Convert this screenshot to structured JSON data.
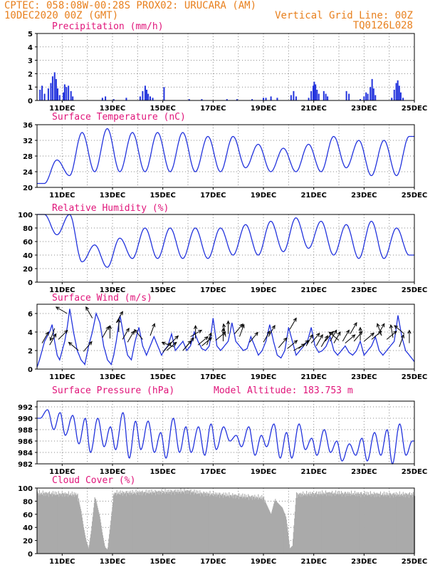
{
  "header": {
    "line1_left": "CPTEC:   058:08W-00:28S   PROX02: URUCARA (AM)",
    "line2_left": "10DEC2020 00Z (GMT)",
    "line2_right": "Vertical Grid Line: 00Z",
    "line3_right": "TQ0126L028"
  },
  "colors": {
    "line": "#2233dd",
    "bar": "#2233dd",
    "cloud": "#aaaaaa",
    "header": "#e8801e",
    "title": "#e0157a"
  },
  "date_labels": [
    "11DEC",
    "13DEC",
    "15DEC",
    "17DEC",
    "19DEC",
    "21DEC",
    "23DEC",
    "25DEC"
  ],
  "chart_data": [
    {
      "type": "bar",
      "title": "Precipitation (mm/h)",
      "ylim": [
        0,
        5
      ],
      "yticks": [
        0,
        1,
        2,
        3,
        4,
        5
      ],
      "x_range_days": [
        10.0,
        25.0
      ],
      "events": [
        [
          10.12,
          0.8
        ],
        [
          10.2,
          1.1
        ],
        [
          10.3,
          0.5
        ],
        [
          10.45,
          0.9
        ],
        [
          10.55,
          1.3
        ],
        [
          10.62,
          1.8
        ],
        [
          10.7,
          2.1
        ],
        [
          10.76,
          1.6
        ],
        [
          10.82,
          0.9
        ],
        [
          10.9,
          0.4
        ],
        [
          11.05,
          0.6
        ],
        [
          11.1,
          1.2
        ],
        [
          11.17,
          1.0
        ],
        [
          11.25,
          1.1
        ],
        [
          11.35,
          0.7
        ],
        [
          11.42,
          0.3
        ],
        [
          12.6,
          0.2
        ],
        [
          12.72,
          0.3
        ],
        [
          13.05,
          0.1
        ],
        [
          13.55,
          0.2
        ],
        [
          14.1,
          0.3
        ],
        [
          14.2,
          0.7
        ],
        [
          14.3,
          1.1
        ],
        [
          14.36,
          0.8
        ],
        [
          14.42,
          0.5
        ],
        [
          14.5,
          0.3
        ],
        [
          14.6,
          0.2
        ],
        [
          15.05,
          1.0
        ],
        [
          16.05,
          0.1
        ],
        [
          16.55,
          0.1
        ],
        [
          17.55,
          0.1
        ],
        [
          17.95,
          0.1
        ],
        [
          18.55,
          0.1
        ],
        [
          19.0,
          0.2
        ],
        [
          19.1,
          0.2
        ],
        [
          19.3,
          0.3
        ],
        [
          19.55,
          0.2
        ],
        [
          20.1,
          0.4
        ],
        [
          20.2,
          0.7
        ],
        [
          20.3,
          0.3
        ],
        [
          20.8,
          0.2
        ],
        [
          20.9,
          0.7
        ],
        [
          20.98,
          1.1
        ],
        [
          21.02,
          1.4
        ],
        [
          21.07,
          1.2
        ],
        [
          21.13,
          0.8
        ],
        [
          21.2,
          0.5
        ],
        [
          21.4,
          0.7
        ],
        [
          21.48,
          0.5
        ],
        [
          21.55,
          0.3
        ],
        [
          22.3,
          0.7
        ],
        [
          22.4,
          0.5
        ],
        [
          22.85,
          0.1
        ],
        [
          23.0,
          0.3
        ],
        [
          23.08,
          0.6
        ],
        [
          23.15,
          0.5
        ],
        [
          23.25,
          1.0
        ],
        [
          23.32,
          1.6
        ],
        [
          23.38,
          0.9
        ],
        [
          23.45,
          0.4
        ],
        [
          24.1,
          0.2
        ],
        [
          24.2,
          0.8
        ],
        [
          24.28,
          1.3
        ],
        [
          24.34,
          1.5
        ],
        [
          24.4,
          1.1
        ],
        [
          24.46,
          0.6
        ],
        [
          24.55,
          0.2
        ]
      ]
    },
    {
      "type": "line",
      "title": "Surface Temperature (nC)",
      "ylim": [
        20,
        36
      ],
      "yticks": [
        20,
        24,
        28,
        32,
        36
      ],
      "min_hour": 7,
      "max_hour": 19,
      "daily": [
        [
          21.0,
          27.0
        ],
        [
          23.0,
          34.0
        ],
        [
          24.0,
          35.0
        ],
        [
          24.0,
          34.0
        ],
        [
          24.0,
          34.0
        ],
        [
          24.0,
          34.0
        ],
        [
          24.0,
          33.0
        ],
        [
          24.0,
          33.0
        ],
        [
          25.0,
          31.0
        ],
        [
          24.0,
          30.0
        ],
        [
          24.0,
          31.0
        ],
        [
          24.0,
          33.0
        ],
        [
          25.0,
          32.0
        ],
        [
          23.0,
          32.0
        ],
        [
          23.0,
          33.0
        ]
      ]
    },
    {
      "type": "line",
      "title": "Relative Humidity (%)",
      "ylim": [
        0,
        100
      ],
      "yticks": [
        0,
        20,
        40,
        60,
        80,
        100
      ],
      "min_hour": 19,
      "max_hour": 7,
      "daily": [
        [
          70,
          100
        ],
        [
          30,
          100
        ],
        [
          22,
          55
        ],
        [
          35,
          65
        ],
        [
          35,
          80
        ],
        [
          35,
          80
        ],
        [
          35,
          80
        ],
        [
          40,
          80
        ],
        [
          40,
          85
        ],
        [
          45,
          90
        ],
        [
          50,
          95
        ],
        [
          40,
          90
        ],
        [
          35,
          85
        ],
        [
          35,
          90
        ],
        [
          40,
          80
        ]
      ]
    },
    {
      "type": "line",
      "title": "Surface Wind (m/s)",
      "ylim": [
        0,
        7
      ],
      "yticks": [
        0,
        2,
        4,
        6
      ],
      "x": [
        10.0,
        10.1,
        10.2,
        10.3,
        10.5,
        10.6,
        10.7,
        10.8,
        10.9,
        11.0,
        11.1,
        11.2,
        11.3,
        11.45,
        11.6,
        11.75,
        11.9,
        12.05,
        12.2,
        12.35,
        12.5,
        12.65,
        12.8,
        12.95,
        13.05,
        13.15,
        13.3,
        13.45,
        13.6,
        13.75,
        13.9,
        14.05,
        14.2,
        14.35,
        14.5,
        14.65,
        14.8,
        14.95,
        15.05,
        15.2,
        15.35,
        15.5,
        15.65,
        15.8,
        15.95,
        16.1,
        16.25,
        16.4,
        16.55,
        16.7,
        16.85,
        17.0,
        17.15,
        17.3,
        17.45,
        17.6,
        17.75,
        17.9,
        18.05,
        18.2,
        18.35,
        18.5,
        18.65,
        18.8,
        18.95,
        19.1,
        19.25,
        19.4,
        19.55,
        19.7,
        19.85,
        20.0,
        20.15,
        20.3,
        20.45,
        20.6,
        20.75,
        20.9,
        21.05,
        21.2,
        21.35,
        21.5,
        21.65,
        21.8,
        21.95,
        22.1,
        22.25,
        22.4,
        22.55,
        22.7,
        22.85,
        23.0,
        23.15,
        23.3,
        23.45,
        23.6,
        23.75,
        23.9,
        24.05,
        24.2,
        24.35,
        24.5,
        24.65,
        24.8,
        25.0
      ],
      "values": [
        0.2,
        1.0,
        2.0,
        3.0,
        4.0,
        4.8,
        3.0,
        1.5,
        1.0,
        2.0,
        3.0,
        4.5,
        6.5,
        4.0,
        2.0,
        1.0,
        0.5,
        2.5,
        4.0,
        6.0,
        5.0,
        2.5,
        1.0,
        0.5,
        1.5,
        3.0,
        5.8,
        3.5,
        1.5,
        1.0,
        3.0,
        4.5,
        2.5,
        1.5,
        2.5,
        3.5,
        2.5,
        1.5,
        2.0,
        2.5,
        3.8,
        2.0,
        2.5,
        3.0,
        2.0,
        2.5,
        4.0,
        3.0,
        2.2,
        2.0,
        2.5,
        5.5,
        2.5,
        2.0,
        2.5,
        3.0,
        5.0,
        3.0,
        2.5,
        2.0,
        2.2,
        3.5,
        2.5,
        1.5,
        2.0,
        3.0,
        4.8,
        3.0,
        1.5,
        1.2,
        2.0,
        4.5,
        3.0,
        1.5,
        2.0,
        2.5,
        3.0,
        4.5,
        2.5,
        1.8,
        2.0,
        2.5,
        3.5,
        2.0,
        1.5,
        2.0,
        2.5,
        1.8,
        1.5,
        2.0,
        3.0,
        1.5,
        2.0,
        2.5,
        3.5,
        2.0,
        1.5,
        2.0,
        2.5,
        3.0,
        5.8,
        3.5,
        2.0,
        1.5,
        0.8
      ],
      "arrows": [
        [
          10.2,
          2.8,
          60
        ],
        [
          10.5,
          2.6,
          60
        ],
        [
          10.7,
          4.4,
          250
        ],
        [
          10.85,
          3.2,
          45
        ],
        [
          11.2,
          6.0,
          150
        ],
        [
          11.65,
          2.0,
          140
        ],
        [
          11.85,
          1.9,
          50
        ],
        [
          12.2,
          5.5,
          120
        ],
        [
          12.6,
          3.4,
          60
        ],
        [
          12.9,
          3.3,
          90
        ],
        [
          13.15,
          5.0,
          60
        ],
        [
          13.25,
          4.0,
          90
        ],
        [
          13.4,
          3.2,
          60
        ],
        [
          13.6,
          2.9,
          60
        ],
        [
          14.2,
          3.2,
          130
        ],
        [
          14.5,
          3.6,
          70
        ],
        [
          15.0,
          1.8,
          50
        ],
        [
          15.15,
          2.0,
          40
        ],
        [
          15.25,
          2.6,
          45
        ],
        [
          15.45,
          2.4,
          160
        ],
        [
          15.8,
          2.0,
          50
        ],
        [
          15.9,
          2.3,
          50
        ],
        [
          16.1,
          3.5,
          30
        ],
        [
          16.3,
          3.3,
          90
        ],
        [
          16.4,
          2.6,
          40
        ],
        [
          16.55,
          2.5,
          40
        ],
        [
          16.75,
          2.6,
          70
        ],
        [
          17.1,
          3.1,
          40
        ],
        [
          17.4,
          3.0,
          90
        ],
        [
          17.5,
          3.5,
          100
        ],
        [
          17.6,
          3.8,
          90
        ],
        [
          17.85,
          3.8,
          50
        ],
        [
          18.05,
          3.5,
          70
        ],
        [
          18.45,
          2.9,
          50
        ],
        [
          19.0,
          2.9,
          60
        ],
        [
          19.2,
          3.5,
          60
        ],
        [
          19.6,
          2.3,
          50
        ],
        [
          19.95,
          2.2,
          40
        ],
        [
          20.05,
          4.3,
          60
        ],
        [
          20.2,
          2.0,
          30
        ],
        [
          20.4,
          2.2,
          40
        ],
        [
          20.7,
          2.5,
          60
        ],
        [
          20.9,
          2.8,
          50
        ],
        [
          21.1,
          2.5,
          60
        ],
        [
          21.3,
          2.4,
          60
        ],
        [
          21.45,
          3.0,
          50
        ],
        [
          21.65,
          3.0,
          60
        ],
        [
          21.8,
          2.8,
          60
        ],
        [
          22.0,
          3.1,
          140
        ],
        [
          22.15,
          3.0,
          60
        ],
        [
          22.25,
          2.8,
          40
        ],
        [
          22.45,
          3.8,
          60
        ],
        [
          22.6,
          3.0,
          50
        ],
        [
          22.85,
          3.1,
          90
        ],
        [
          23.0,
          3.0,
          40
        ],
        [
          23.3,
          3.2,
          40
        ],
        [
          23.55,
          3.7,
          60
        ],
        [
          23.7,
          3.6,
          110
        ],
        [
          23.9,
          3.2,
          40
        ],
        [
          24.15,
          3.4,
          100
        ],
        [
          24.4,
          2.4,
          70
        ],
        [
          24.6,
          3.8,
          140
        ],
        [
          24.8,
          2.8,
          90
        ]
      ]
    },
    {
      "type": "line",
      "title": "Surface Pressure (hPa)",
      "subtitle": "Model Altitude: 183.753 m",
      "ylim": [
        982,
        993
      ],
      "yticks": [
        982,
        984,
        986,
        988,
        990,
        992
      ],
      "low1_hour": 3,
      "high1_hour": 10,
      "low2_hour": 16,
      "high2_hour": 22,
      "daily": [
        [
          990.0,
          991.5,
          988.0,
          991.0
        ],
        [
          987.0,
          990.5,
          985.5,
          990.0
        ],
        [
          984.0,
          990.0,
          985.0,
          988.5
        ],
        [
          984.5,
          991.0,
          983.0,
          989.5
        ],
        [
          984.5,
          989.5,
          984.0,
          987.5
        ],
        [
          983.0,
          990.0,
          984.0,
          988.5
        ],
        [
          984.0,
          988.5,
          983.5,
          989.0
        ],
        [
          984.5,
          988.5,
          986.0,
          987.0
        ],
        [
          985.0,
          988.5,
          983.5,
          987.0
        ],
        [
          985.0,
          989.0,
          983.0,
          987.5
        ],
        [
          983.0,
          989.0,
          984.5,
          986.5
        ],
        [
          983.5,
          988.0,
          984.0,
          986.0
        ],
        [
          982.5,
          985.5,
          983.5,
          986.5
        ],
        [
          982.5,
          987.5,
          983.5,
          988.0
        ],
        [
          982.0,
          989.0,
          983.5,
          986.0
        ]
      ]
    },
    {
      "type": "bar",
      "title": "Cloud Cover (%)",
      "ylim": [
        0,
        100
      ],
      "yticks": [
        0,
        20,
        40,
        60,
        80,
        100
      ],
      "x_range_days": [
        10.0,
        25.0
      ],
      "segments": [
        [
          10.0,
          92
        ],
        [
          11.6,
          90
        ],
        [
          11.75,
          65
        ],
        [
          11.85,
          40
        ],
        [
          11.95,
          20
        ],
        [
          12.05,
          8
        ],
        [
          12.15,
          35
        ],
        [
          12.3,
          88
        ],
        [
          12.5,
          55
        ],
        [
          12.6,
          30
        ],
        [
          12.7,
          10
        ],
        [
          12.8,
          6
        ],
        [
          12.9,
          40
        ],
        [
          13.05,
          92
        ],
        [
          16.0,
          95
        ],
        [
          16.5,
          92
        ],
        [
          19.0,
          85
        ],
        [
          19.3,
          60
        ],
        [
          19.45,
          82
        ],
        [
          19.75,
          70
        ],
        [
          19.9,
          55
        ],
        [
          20.05,
          8
        ],
        [
          20.15,
          12
        ],
        [
          20.3,
          90
        ],
        [
          21.5,
          92
        ],
        [
          24.0,
          90
        ],
        [
          25.0,
          90
        ]
      ]
    }
  ]
}
